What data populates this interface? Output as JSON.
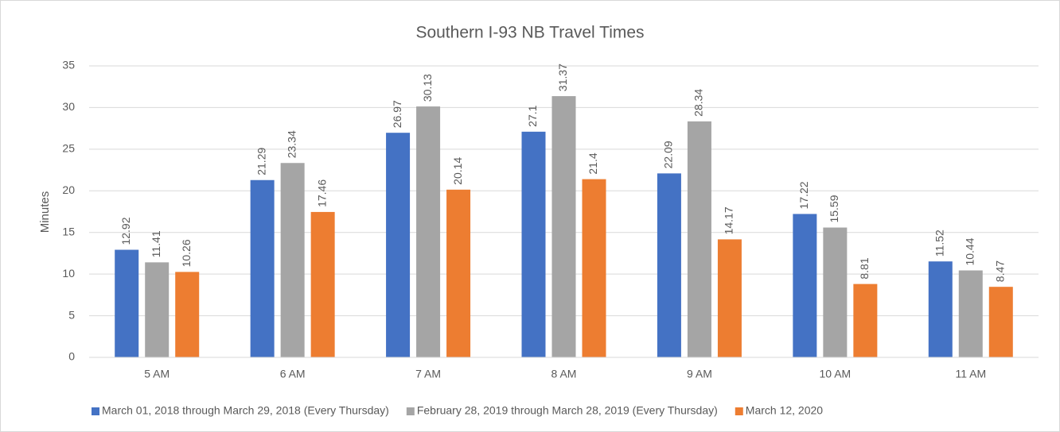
{
  "chart_data": {
    "type": "bar",
    "title": "Southern I-93 NB Travel Times",
    "y_label": "Minutes",
    "categories": [
      "5 AM",
      "6 AM",
      "7 AM",
      "8 AM",
      "9 AM",
      "10 AM",
      "11 AM"
    ],
    "series": [
      {
        "name": "March 01, 2018 through March 29, 2018 (Every Thursday)",
        "color": "#4472c4",
        "values": [
          12.92,
          21.29,
          26.97,
          27.1,
          22.09,
          17.22,
          11.52
        ]
      },
      {
        "name": "February 28, 2019 through March 28, 2019 (Every Thursday)",
        "color": "#a5a5a5",
        "values": [
          11.41,
          23.34,
          30.13,
          31.37,
          28.34,
          15.59,
          10.44
        ]
      },
      {
        "name": "March 12, 2020",
        "color": "#ed7d31",
        "values": [
          10.26,
          17.46,
          20.14,
          21.4,
          14.17,
          8.81,
          8.47
        ]
      }
    ],
    "ylim": [
      0,
      35
    ],
    "yticks": [
      0,
      5,
      10,
      15,
      20,
      25,
      30,
      35
    ],
    "grid": true,
    "legend": "bottom"
  }
}
